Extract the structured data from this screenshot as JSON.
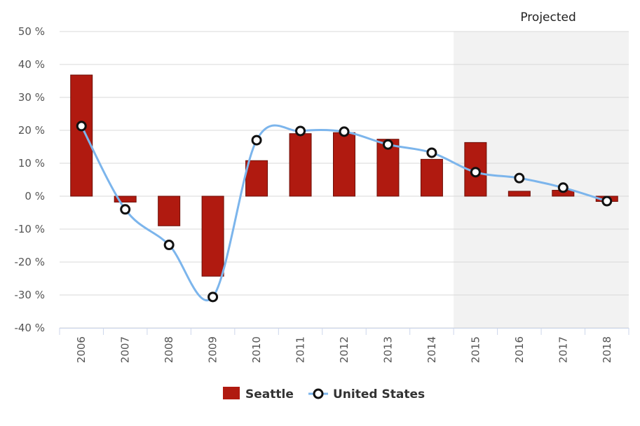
{
  "chart_data": {
    "type": "bar+line",
    "categories": [
      "2006",
      "2007",
      "2008",
      "2009",
      "2010",
      "2011",
      "2012",
      "2013",
      "2014",
      "2015",
      "2016",
      "2017",
      "2018"
    ],
    "series": [
      {
        "name": "Seattle",
        "type": "bar",
        "color": "#b01a10",
        "values": [
          36.8,
          -1.8,
          -9.0,
          -24.3,
          10.8,
          19.0,
          19.3,
          17.3,
          11.2,
          16.3,
          1.5,
          1.8,
          -1.6
        ]
      },
      {
        "name": "United States",
        "type": "line",
        "color": "#7cb5ec",
        "values": [
          21.3,
          -4.0,
          -14.8,
          -30.6,
          17.0,
          19.8,
          19.6,
          15.7,
          13.2,
          7.3,
          5.5,
          2.6,
          -1.5
        ]
      }
    ],
    "yaxis": {
      "min": -40,
      "max": 50,
      "step": 10,
      "tick_labels": [
        "50 %",
        "40 %",
        "30 %",
        "20 %",
        "10 %",
        "0 %",
        "-10 %",
        "-20 %",
        "-30 %",
        "-40 %"
      ]
    },
    "projected": {
      "label": "Projected",
      "from_category": "2015"
    },
    "legend": [
      "Seattle",
      "United States"
    ]
  }
}
